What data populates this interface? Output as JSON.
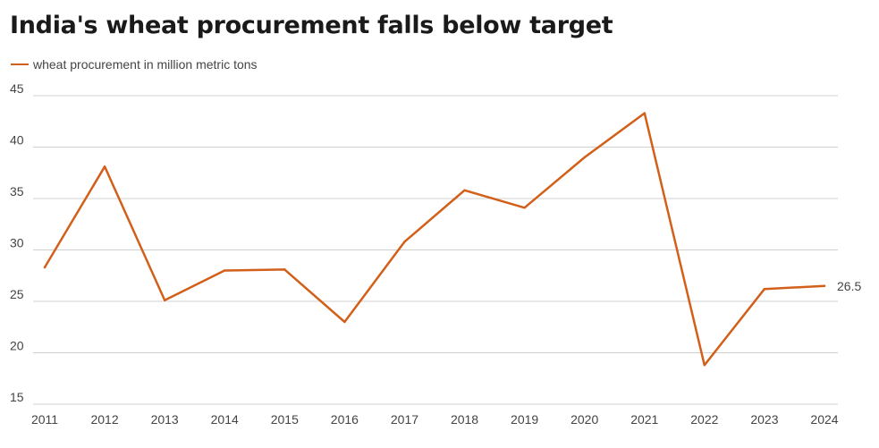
{
  "colors": {
    "series": "#d2601a",
    "grid": "#d0d0d0",
    "text": "#444444",
    "title": "#1a1a1a"
  },
  "chart_data": {
    "type": "line",
    "title": "India's wheat procurement falls below target",
    "xlabel": "",
    "ylabel": "",
    "ylim": [
      15,
      45
    ],
    "yticks": [
      15,
      20,
      25,
      30,
      35,
      40,
      45
    ],
    "legend_position": "top-left",
    "grid": true,
    "categories": [
      "2011",
      "2012",
      "2013",
      "2014",
      "2015",
      "2016",
      "2017",
      "2018",
      "2019",
      "2020",
      "2021",
      "2022",
      "2023",
      "2024"
    ],
    "series": [
      {
        "name": "wheat procurement in million metric tons",
        "values": [
          28.3,
          38.1,
          25.1,
          28.0,
          28.1,
          23.0,
          30.8,
          35.8,
          34.1,
          39.0,
          43.3,
          18.8,
          26.2,
          26.5
        ]
      }
    ],
    "annotations": [
      {
        "category": "2024",
        "text": "26.5"
      }
    ]
  }
}
